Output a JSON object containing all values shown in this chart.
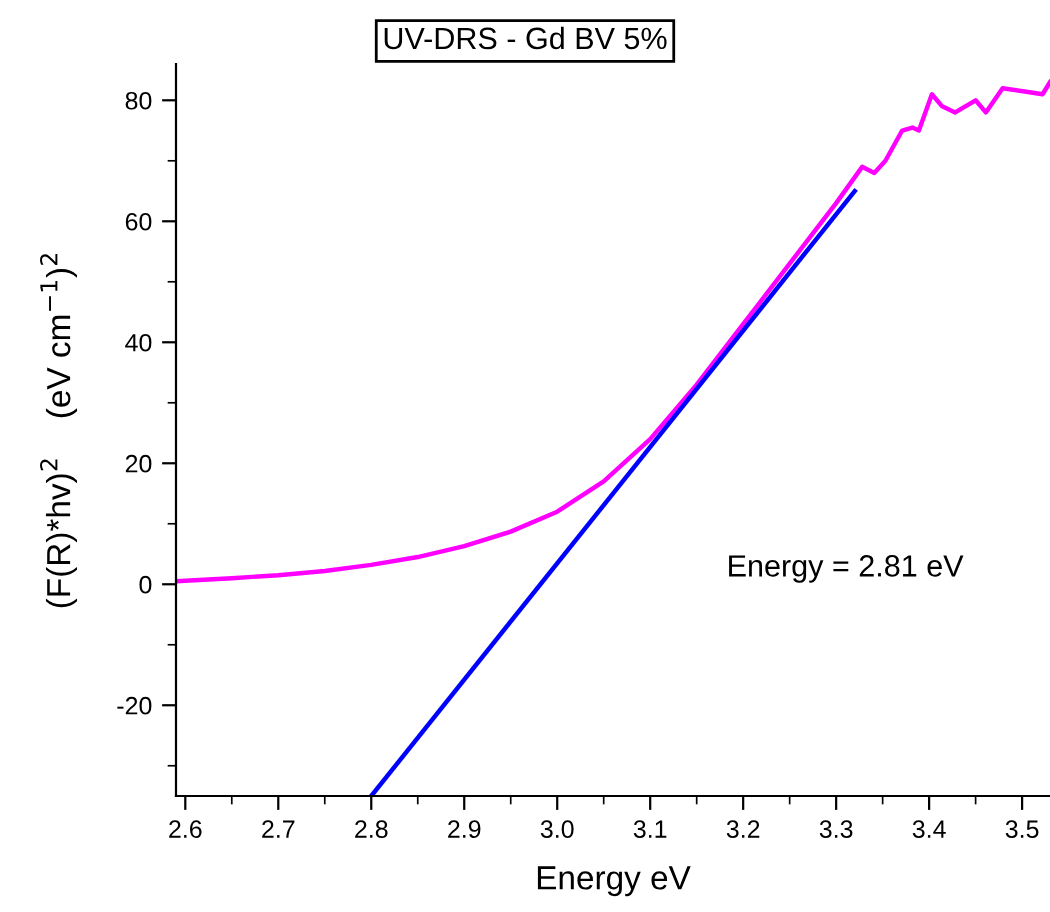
{
  "chart_data": {
    "type": "line",
    "title": "UV-DRS - Gd BV 5%",
    "xlabel": "Energy eV",
    "ylabel": "(F(R)*hv)$^{2}$    (eV cm$^{−1}$)$^{2}$",
    "annotations": [
      "Energy = 2.81 eV"
    ],
    "series": [
      {
        "color": "#ff00ff",
        "x": [
          2.59,
          2.65,
          2.7,
          2.75,
          2.8,
          2.85,
          2.9,
          2.95,
          3.0,
          3.05,
          3.1,
          3.15,
          3.2,
          3.25,
          3.3,
          3.328,
          3.341,
          3.353,
          3.371,
          3.382,
          3.389,
          3.403,
          3.414,
          3.428,
          3.45,
          3.461,
          3.479,
          3.501,
          3.522,
          3.53
        ],
        "values": [
          0.5,
          1.0,
          1.5,
          2.2,
          3.2,
          4.5,
          6.3,
          8.7,
          12,
          17,
          24,
          33,
          43,
          53,
          63,
          69,
          68,
          70,
          75,
          75.5,
          75,
          81,
          79,
          78,
          80,
          78,
          82,
          81.5,
          81,
          83
        ]
      },
      {
        "color": "#0000ff",
        "x": [
          2.8,
          3.32
        ],
        "values": [
          -35,
          65
        ]
      }
    ],
    "xlim": [
      2.59,
      3.53
    ],
    "ylim": [
      -35,
      86
    ],
    "xticks": [
      2.6,
      2.7,
      2.8,
      2.9,
      {
        "value": 3.0,
        "label": "3.0"
      },
      3.1,
      3.2,
      3.3,
      3.4,
      3.5,
      {
        "value": 2.65,
        "label": null
      },
      {
        "value": 2.75,
        "label": null
      },
      {
        "value": 2.85,
        "label": null
      },
      {
        "value": 2.95,
        "label": null
      },
      {
        "value": 3.05,
        "label": null
      },
      {
        "value": 3.15,
        "label": null
      },
      {
        "value": 3.25,
        "label": null
      },
      {
        "value": 3.35,
        "label": null
      },
      {
        "value": 3.45,
        "label": null
      }
    ],
    "yticks": [
      -20,
      0,
      20,
      40,
      60,
      80,
      {
        "value": -30,
        "label": null
      },
      {
        "value": -10,
        "label": null
      },
      {
        "value": 10,
        "label": null
      },
      {
        "value": 30,
        "label": null
      },
      {
        "value": 50,
        "label": null
      },
      {
        "value": 70,
        "label": null
      }
    ],
    "grid": false,
    "legend": false
  }
}
